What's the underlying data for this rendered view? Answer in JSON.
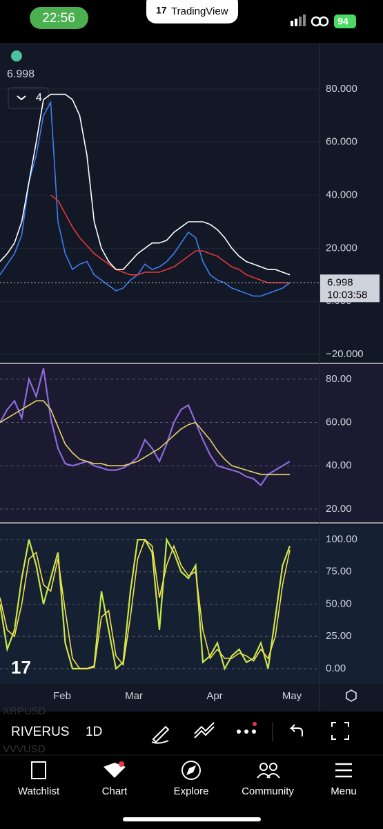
{
  "status_bar": {
    "time": "22:56",
    "battery": "94"
  },
  "header": {
    "brand": "TradingView"
  },
  "main_chart": {
    "last_value": "6.998",
    "indicator_count": "4",
    "ylim": [
      -23.1,
      97.4
    ],
    "yticks": [
      {
        "value": 80,
        "label": "80.000"
      },
      {
        "value": 60,
        "label": "60.000"
      },
      {
        "value": 40,
        "label": "40.000"
      },
      {
        "value": 20,
        "label": "20.000"
      },
      {
        "value": 0,
        "label": "0.000"
      },
      {
        "value": -20,
        "label": "−20.000"
      }
    ],
    "price_label": {
      "value": 6.998,
      "label": "6.998",
      "countdown": "10:03:58"
    },
    "series": [
      {
        "color": "#3d7ff0",
        "values": [
          10,
          14,
          18,
          25,
          45,
          55,
          70,
          75,
          30,
          18,
          12,
          14,
          15,
          10,
          8,
          6,
          4,
          5,
          8,
          10,
          14,
          12,
          13,
          15,
          18,
          22,
          26,
          24,
          15,
          10,
          8,
          7,
          5,
          4,
          3,
          2,
          2,
          3,
          4,
          5,
          7
        ]
      },
      {
        "color": "#e53935",
        "values": [
          null,
          null,
          null,
          null,
          null,
          null,
          null,
          40,
          38,
          33,
          28,
          24,
          21,
          18,
          16,
          14,
          12,
          11,
          10,
          10,
          11,
          11,
          11,
          12,
          13,
          15,
          17,
          19,
          19,
          18,
          17,
          15,
          13,
          12,
          10,
          9,
          8,
          7,
          7,
          7,
          7
        ]
      },
      {
        "color": "#ffffff",
        "values": [
          15,
          18,
          22,
          30,
          45,
          60,
          76,
          78,
          78,
          78,
          76,
          70,
          55,
          30,
          20,
          15,
          12,
          12,
          15,
          18,
          20,
          22,
          22,
          23,
          26,
          28,
          30,
          30,
          30,
          29,
          27,
          24,
          20,
          17,
          15,
          14,
          13,
          12,
          12,
          11,
          10
        ]
      }
    ]
  },
  "rsi_panel": {
    "ylim": [
      13.9,
      85.7
    ],
    "yticks": [
      {
        "value": 80,
        "label": "80.00"
      },
      {
        "value": 60,
        "label": "60.00"
      },
      {
        "value": 40,
        "label": "40.00"
      },
      {
        "value": 20,
        "label": "20.00"
      }
    ],
    "series": [
      {
        "color": "#8e6bdc",
        "values": [
          60,
          66,
          70,
          62,
          80,
          72,
          85,
          62,
          48,
          41,
          40,
          41,
          42,
          40,
          39,
          38,
          38,
          39,
          41,
          44,
          52,
          48,
          42,
          50,
          60,
          66,
          68,
          60,
          52,
          45,
          40,
          39,
          38,
          37,
          35,
          34,
          31,
          36,
          38,
          40,
          42
        ]
      },
      {
        "color": "#e8d36a",
        "values": [
          60,
          62,
          64,
          66,
          68,
          70,
          70,
          66,
          58,
          50,
          46,
          43,
          42,
          41,
          41,
          40,
          40,
          40,
          41,
          42,
          44,
          46,
          48,
          51,
          54,
          57,
          59,
          60,
          56,
          52,
          47,
          43,
          40,
          39,
          38,
          37,
          36,
          36,
          36,
          36,
          36
        ]
      }
    ]
  },
  "stoch_panel": {
    "ylim": [
      -11.8,
      111.8
    ],
    "yticks": [
      {
        "value": 100,
        "label": "100.00"
      },
      {
        "value": 75,
        "label": "75.00"
      },
      {
        "value": 50,
        "label": "50.00"
      },
      {
        "value": 25,
        "label": "25.00"
      },
      {
        "value": 0,
        "label": "0.00"
      }
    ],
    "series": [
      {
        "color": "#c8e84a",
        "values": [
          50,
          15,
          30,
          70,
          100,
          80,
          50,
          70,
          90,
          20,
          0,
          0,
          0,
          2,
          60,
          30,
          0,
          5,
          60,
          100,
          100,
          90,
          30,
          100,
          90,
          75,
          70,
          80,
          5,
          10,
          20,
          0,
          10,
          15,
          5,
          8,
          20,
          0,
          40,
          80,
          95
        ]
      },
      {
        "color": "#f5e04a",
        "values": [
          55,
          30,
          25,
          50,
          85,
          90,
          65,
          60,
          85,
          45,
          8,
          0,
          0,
          1,
          40,
          45,
          10,
          3,
          40,
          85,
          100,
          95,
          55,
          80,
          95,
          80,
          72,
          75,
          30,
          8,
          15,
          8,
          8,
          12,
          10,
          6,
          15,
          8,
          25,
          65,
          92
        ]
      }
    ]
  },
  "time_axis": [
    "Feb",
    "Mar",
    "Apr",
    "May"
  ],
  "toolbar": {
    "symbol": "RIVERUS",
    "interval": "1D",
    "watch_a": "XRPUSD",
    "watch_b": "VVVUSD"
  },
  "nav": [
    "Watchlist",
    "Chart",
    "Explore",
    "Community",
    "Menu"
  ]
}
